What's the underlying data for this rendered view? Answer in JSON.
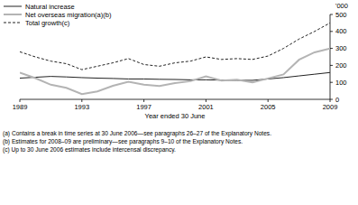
{
  "chart_data": {
    "type": "line",
    "x_label": "Year ended 30 June",
    "y_label": "'000",
    "x": [
      1989,
      1990,
      1991,
      1992,
      1993,
      1994,
      1995,
      1996,
      1997,
      1998,
      1999,
      2000,
      2001,
      2002,
      2003,
      2004,
      2005,
      2006,
      2007,
      2008,
      2009
    ],
    "series": [
      {
        "name": "Natural increase",
        "color": "#222222",
        "line_style": "solid",
        "values": [
          125,
          130,
          135,
          132,
          128,
          125,
          123,
          120,
          120,
          118,
          117,
          115,
          115,
          113,
          112,
          112,
          120,
          128,
          138,
          148,
          158
        ]
      },
      {
        "name": "Net overseas migration(a)(b)",
        "color": "#b4b4b4",
        "line_style": "solid",
        "values": [
          157,
          125,
          86,
          68,
          31,
          47,
          80,
          104,
          87,
          79,
          96,
          107,
          135,
          110,
          116,
          100,
          123,
          147,
          233,
          277,
          299
        ]
      },
      {
        "name": "Total growth(c)",
        "color": "#222222",
        "line_style": "dashed",
        "values": [
          280,
          250,
          225,
          210,
          175,
          195,
          215,
          240,
          205,
          195,
          215,
          225,
          250,
          235,
          240,
          235,
          255,
          300,
          355,
          400,
          450
        ]
      }
    ],
    "xlim": [
      1989,
      2009
    ],
    "xticks": [
      1989,
      1993,
      1997,
      2001,
      2005,
      2009
    ],
    "ylim": [
      0,
      500
    ],
    "yticks": [
      0,
      100,
      200,
      300,
      400,
      500
    ],
    "legend": "top-left",
    "grid": false,
    "annotations": [
      "(a) Contains a break in time series at 30 June 2006—see paragraphs 26–27 of the Explanatory Notes.",
      "(b) Estimates for 2008–09 are preliminary—see paragraphs 9–10 of the Explanatory Notes.",
      "(c) Up to 30 June 2006 estimates include intercensal discrepancy."
    ]
  }
}
